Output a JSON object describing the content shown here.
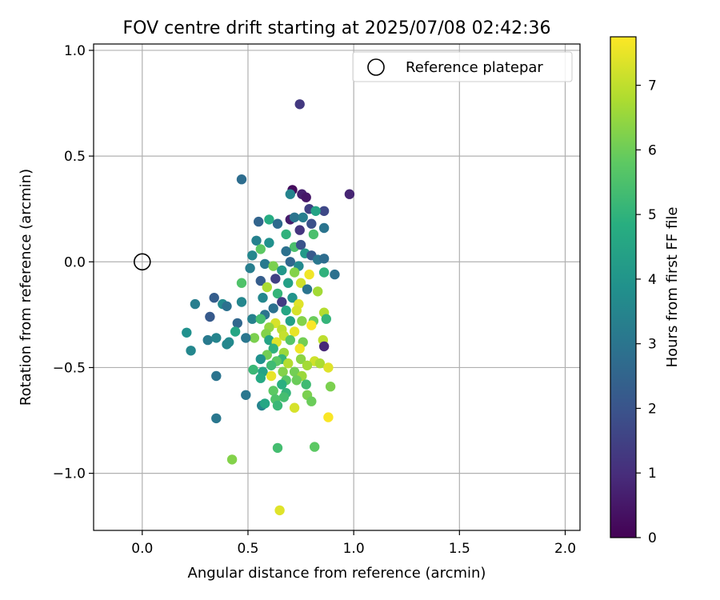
{
  "chart_data": {
    "type": "scatter",
    "title": "FOV centre drift starting at 2025/07/08 02:42:36",
    "xlabel": "Angular distance from reference (arcmin)",
    "ylabel": "Rotation from reference (arcmin)",
    "xlim": [
      -0.23,
      2.07
    ],
    "ylim": [
      -1.27,
      1.03
    ],
    "xticks": [
      {
        "v": 0.0,
        "label": "0.0"
      },
      {
        "v": 0.5,
        "label": "0.5"
      },
      {
        "v": 1.0,
        "label": "1.0"
      },
      {
        "v": 1.5,
        "label": "1.5"
      },
      {
        "v": 2.0,
        "label": "2.0"
      }
    ],
    "yticks": [
      {
        "v": 1.0,
        "label": "1.0"
      },
      {
        "v": 0.5,
        "label": "0.5"
      },
      {
        "v": 0.0,
        "label": "0.0"
      },
      {
        "v": -0.5,
        "label": "−0.5"
      },
      {
        "v": -1.0,
        "label": "−1.0"
      }
    ],
    "grid": true,
    "legend": {
      "position": "top-right",
      "entries": [
        "Reference platepar"
      ]
    },
    "reference_point": {
      "x": 0.0,
      "y": 0.0
    },
    "colorbar": {
      "label": "Hours from first FF file",
      "min": 0,
      "max": 7.75,
      "ticks": [
        {
          "v": 0,
          "label": "0"
        },
        {
          "v": 1,
          "label": "1"
        },
        {
          "v": 2,
          "label": "2"
        },
        {
          "v": 3,
          "label": "3"
        },
        {
          "v": 4,
          "label": "4"
        },
        {
          "v": 5,
          "label": "5"
        },
        {
          "v": 6,
          "label": "6"
        },
        {
          "v": 7,
          "label": "7"
        }
      ],
      "colormap": "viridis"
    },
    "points": [
      [
        0.745,
        0.745,
        1.3
      ],
      [
        0.98,
        0.32,
        0.8
      ],
      [
        0.71,
        0.34,
        0.2
      ],
      [
        0.755,
        0.32,
        0.7
      ],
      [
        0.775,
        0.305,
        0.5
      ],
      [
        0.7,
        0.32,
        3.5
      ],
      [
        0.47,
        0.39,
        2.8
      ],
      [
        0.79,
        0.25,
        1.5
      ],
      [
        0.86,
        0.24,
        1.7
      ],
      [
        0.82,
        0.24,
        4.5
      ],
      [
        0.7,
        0.2,
        0.6
      ],
      [
        0.72,
        0.21,
        3.0
      ],
      [
        0.6,
        0.2,
        4.8
      ],
      [
        0.76,
        0.21,
        3.3
      ],
      [
        0.55,
        0.19,
        2.5
      ],
      [
        0.64,
        0.18,
        2.7
      ],
      [
        0.8,
        0.18,
        1.9
      ],
      [
        0.86,
        0.16,
        3.0
      ],
      [
        0.745,
        0.15,
        1.2
      ],
      [
        0.68,
        0.13,
        5.0
      ],
      [
        0.81,
        0.13,
        5.5
      ],
      [
        0.54,
        0.1,
        3.4
      ],
      [
        0.6,
        0.09,
        3.9
      ],
      [
        0.72,
        0.07,
        5.5
      ],
      [
        0.75,
        0.08,
        2.0
      ],
      [
        0.56,
        0.06,
        5.8
      ],
      [
        0.68,
        0.05,
        2.9
      ],
      [
        0.52,
        0.03,
        3.6
      ],
      [
        0.77,
        0.04,
        4.2
      ],
      [
        0.8,
        0.03,
        2.2
      ],
      [
        0.83,
        0.01,
        3.1
      ],
      [
        0.86,
        0.015,
        2.8
      ],
      [
        0.7,
        0.0,
        2.6
      ],
      [
        0.58,
        -0.01,
        3.2
      ],
      [
        0.74,
        -0.02,
        3.7
      ],
      [
        0.62,
        -0.02,
        6.2
      ],
      [
        0.51,
        -0.03,
        3.3
      ],
      [
        0.66,
        -0.04,
        4.1
      ],
      [
        0.72,
        -0.05,
        6.3
      ],
      [
        0.79,
        -0.06,
        7.6
      ],
      [
        0.86,
        -0.05,
        5.0
      ],
      [
        0.91,
        -0.06,
        2.9
      ],
      [
        0.63,
        -0.08,
        1.5
      ],
      [
        0.56,
        -0.09,
        2.3
      ],
      [
        0.69,
        -0.1,
        4.4
      ],
      [
        0.75,
        -0.1,
        7.2
      ],
      [
        0.47,
        -0.1,
        5.6
      ],
      [
        0.59,
        -0.12,
        6.8
      ],
      [
        0.78,
        -0.13,
        3.0
      ],
      [
        0.64,
        -0.15,
        5.1
      ],
      [
        0.83,
        -0.14,
        6.7
      ],
      [
        0.71,
        -0.17,
        4.0
      ],
      [
        0.57,
        -0.17,
        3.6
      ],
      [
        0.34,
        -0.17,
        2.3
      ],
      [
        0.47,
        -0.19,
        3.6
      ],
      [
        0.25,
        -0.2,
        3.3
      ],
      [
        0.38,
        -0.2,
        3.7
      ],
      [
        0.4,
        -0.21,
        2.9
      ],
      [
        0.66,
        -0.19,
        1.4
      ],
      [
        0.74,
        -0.2,
        7.4
      ],
      [
        0.62,
        -0.22,
        2.9
      ],
      [
        0.68,
        -0.23,
        4.6
      ],
      [
        0.73,
        -0.23,
        7.3
      ],
      [
        0.86,
        -0.24,
        6.9
      ],
      [
        0.58,
        -0.25,
        3.0
      ],
      [
        0.32,
        -0.26,
        2.2
      ],
      [
        0.52,
        -0.27,
        3.4
      ],
      [
        0.56,
        -0.27,
        5.4
      ],
      [
        0.81,
        -0.28,
        6.0
      ],
      [
        0.87,
        -0.27,
        5.1
      ],
      [
        0.45,
        -0.29,
        2.6
      ],
      [
        0.63,
        -0.29,
        7.3
      ],
      [
        0.7,
        -0.28,
        4.4
      ],
      [
        0.755,
        -0.28,
        6.3
      ],
      [
        0.6,
        -0.31,
        6.5
      ],
      [
        0.66,
        -0.32,
        7.0
      ],
      [
        0.8,
        -0.3,
        7.7
      ],
      [
        0.44,
        -0.33,
        4.6
      ],
      [
        0.21,
        -0.335,
        3.9
      ],
      [
        0.72,
        -0.33,
        7.5
      ],
      [
        0.585,
        -0.34,
        6.3
      ],
      [
        0.67,
        -0.35,
        7.1
      ],
      [
        0.53,
        -0.36,
        6.2
      ],
      [
        0.49,
        -0.36,
        3.1
      ],
      [
        0.31,
        -0.37,
        3.2
      ],
      [
        0.35,
        -0.36,
        3.5
      ],
      [
        0.6,
        -0.37,
        4.5
      ],
      [
        0.635,
        -0.38,
        7.4
      ],
      [
        0.7,
        -0.37,
        5.7
      ],
      [
        0.76,
        -0.38,
        6.1
      ],
      [
        0.855,
        -0.37,
        7.0
      ],
      [
        0.41,
        -0.38,
        3.7
      ],
      [
        0.4,
        -0.39,
        3.6
      ],
      [
        0.86,
        -0.4,
        0.9
      ],
      [
        0.23,
        -0.42,
        3.6
      ],
      [
        0.62,
        -0.41,
        5.0
      ],
      [
        0.67,
        -0.43,
        6.6
      ],
      [
        0.745,
        -0.41,
        7.6
      ],
      [
        0.59,
        -0.44,
        6.1
      ],
      [
        0.66,
        -0.46,
        5.1
      ],
      [
        0.75,
        -0.46,
        6.4
      ],
      [
        0.56,
        -0.46,
        3.9
      ],
      [
        0.815,
        -0.47,
        7.2
      ],
      [
        0.635,
        -0.47,
        5.8
      ],
      [
        0.69,
        -0.48,
        6.9
      ],
      [
        0.61,
        -0.49,
        5.3
      ],
      [
        0.78,
        -0.49,
        6.7
      ],
      [
        0.84,
        -0.48,
        6.8
      ],
      [
        0.525,
        -0.51,
        5.2
      ],
      [
        0.57,
        -0.52,
        4.5
      ],
      [
        0.665,
        -0.52,
        6.3
      ],
      [
        0.72,
        -0.52,
        6.1
      ],
      [
        0.88,
        -0.5,
        7.4
      ],
      [
        0.35,
        -0.54,
        3.0
      ],
      [
        0.61,
        -0.54,
        7.5
      ],
      [
        0.755,
        -0.54,
        6.6
      ],
      [
        0.56,
        -0.55,
        4.7
      ],
      [
        0.68,
        -0.56,
        5.7
      ],
      [
        0.73,
        -0.56,
        6.0
      ],
      [
        0.66,
        -0.58,
        4.9
      ],
      [
        0.775,
        -0.58,
        5.3
      ],
      [
        0.89,
        -0.59,
        6.2
      ],
      [
        0.62,
        -0.61,
        5.8
      ],
      [
        0.68,
        -0.62,
        5.1
      ],
      [
        0.78,
        -0.63,
        6.2
      ],
      [
        0.49,
        -0.63,
        3.1
      ],
      [
        0.67,
        -0.64,
        5.4
      ],
      [
        0.8,
        -0.66,
        6.0
      ],
      [
        0.63,
        -0.65,
        5.6
      ],
      [
        0.565,
        -0.68,
        3.5
      ],
      [
        0.58,
        -0.67,
        4.6
      ],
      [
        0.64,
        -0.68,
        5.2
      ],
      [
        0.72,
        -0.69,
        7.3
      ],
      [
        0.88,
        -0.735,
        7.7
      ],
      [
        0.35,
        -0.74,
        3.1
      ],
      [
        0.64,
        -0.88,
        5.4
      ],
      [
        0.815,
        -0.875,
        5.8
      ],
      [
        0.425,
        -0.935,
        6.3
      ],
      [
        0.65,
        -1.175,
        7.4
      ]
    ]
  }
}
